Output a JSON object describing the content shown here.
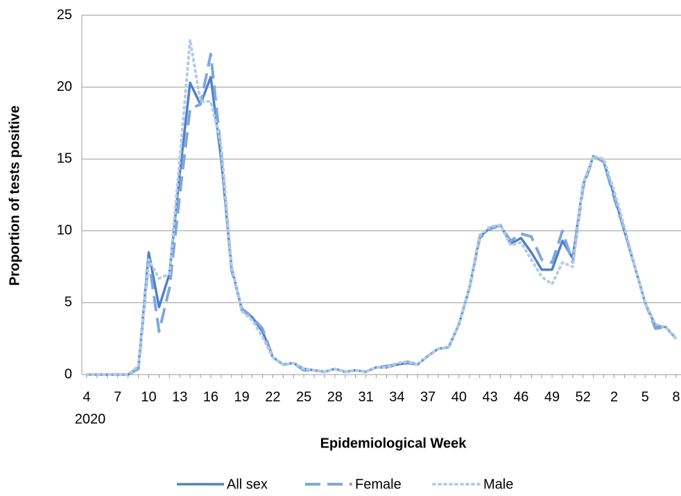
{
  "chart_data": {
    "type": "line",
    "x_title": "Epidemiological Week",
    "y_title": "Proportion of tests positive",
    "year_label": "2020",
    "categories": [
      "4",
      null,
      null,
      "7",
      null,
      null,
      "10",
      null,
      null,
      "13",
      null,
      null,
      "16",
      null,
      null,
      "19",
      null,
      null,
      "22",
      null,
      null,
      "25",
      null,
      null,
      "28",
      null,
      null,
      "31",
      null,
      null,
      "34",
      null,
      null,
      "37",
      null,
      null,
      "40",
      null,
      null,
      "43",
      null,
      null,
      "46",
      null,
      null,
      "49",
      null,
      null,
      "52",
      null,
      null,
      "2",
      null,
      null,
      "5",
      null,
      null,
      "8"
    ],
    "series": [
      {
        "name": "All sex",
        "color": "#4f81c7",
        "dash": "solid",
        "values": [
          0,
          0,
          0,
          0,
          0,
          0.5,
          8.5,
          4.7,
          7,
          14,
          20.3,
          18.8,
          20.7,
          15,
          7.5,
          4.5,
          4,
          3,
          1.2,
          0.7,
          0.8,
          0.4,
          0.3,
          0.2,
          0.4,
          0.2,
          0.3,
          0.2,
          0.5,
          0.5,
          0.7,
          0.8,
          0.7,
          1.3,
          1.8,
          1.9,
          3.5,
          6,
          9.6,
          10.2,
          10.4,
          9.1,
          9.5,
          8.5,
          7.3,
          7.3,
          9.3,
          8.1,
          13.2,
          15.2,
          14.8,
          12.5,
          10,
          7.5,
          5,
          3.4,
          3.3,
          2.5
        ]
      },
      {
        "name": "Female",
        "color": "#7fa7de",
        "dash": "dashed",
        "values": [
          0,
          0,
          0,
          0,
          0,
          0.4,
          8,
          3,
          6,
          12.5,
          18.5,
          18.8,
          22.3,
          15.5,
          7.3,
          4.6,
          4,
          3.2,
          1.2,
          0.7,
          0.8,
          0.3,
          0.3,
          0.2,
          0.4,
          0.2,
          0.3,
          0.2,
          0.5,
          0.6,
          0.7,
          0.9,
          0.7,
          1.3,
          1.8,
          1.9,
          3.5,
          6,
          9.5,
          10.1,
          10.4,
          9.3,
          9.8,
          9.6,
          8,
          7.8,
          10,
          7.8,
          13,
          15.2,
          14.8,
          12.3,
          10,
          7.5,
          5,
          3.2,
          3.3,
          2.5
        ]
      },
      {
        "name": "Male",
        "color": "#b4cbe9",
        "dash": "dotted",
        "values": [
          0,
          0,
          0,
          0,
          0,
          0.6,
          8,
          6.7,
          7,
          15,
          23.3,
          19,
          19,
          16,
          7.6,
          4.4,
          3.8,
          2.6,
          1.2,
          0.7,
          0.8,
          0.4,
          0.3,
          0.2,
          0.4,
          0.2,
          0.3,
          0.2,
          0.5,
          0.5,
          0.8,
          0.9,
          0.7,
          1.3,
          1.8,
          1.9,
          3.5,
          6,
          9.7,
          10.3,
          10.4,
          9,
          9.2,
          8,
          6.8,
          6.3,
          7.8,
          7.5,
          13.3,
          15.2,
          15,
          12.8,
          10.3,
          7.5,
          5,
          3.5,
          3.3,
          2.5
        ]
      }
    ],
    "ylim": [
      0,
      25
    ],
    "yticks": [
      0,
      5,
      10,
      15,
      20,
      25
    ],
    "grid": true,
    "legend": "bottom"
  }
}
